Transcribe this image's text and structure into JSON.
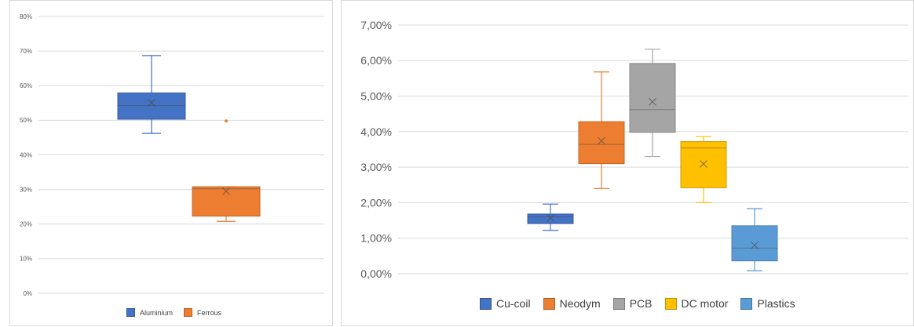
{
  "charts": [
    {
      "id": "left",
      "chart_data": {
        "type": "box",
        "title": "",
        "xlabel": "",
        "ylabel": "",
        "ylim": [
          0,
          0.8
        ],
        "yticks": [
          "0%",
          "10%",
          "20%",
          "30%",
          "40%",
          "50%",
          "60%",
          "70%",
          "80%"
        ],
        "grid": true,
        "legend_position": "bottom",
        "series": [
          {
            "name": "Aluminium",
            "color": "#4472C4",
            "min": 0.462,
            "q1": 0.503,
            "median": 0.543,
            "q3": 0.579,
            "max": 0.687,
            "mean": 0.551,
            "outliers": []
          },
          {
            "name": "Ferrous",
            "color": "#ED7D31",
            "min": 0.208,
            "q1": 0.223,
            "median": 0.302,
            "q3": 0.308,
            "max": 0.308,
            "mean": 0.295,
            "outliers": [
              0.498
            ]
          }
        ]
      }
    },
    {
      "id": "right",
      "chart_data": {
        "type": "box",
        "title": "",
        "xlabel": "",
        "ylabel": "",
        "ylim": [
          0,
          0.07
        ],
        "yticks": [
          "0,00%",
          "1,00%",
          "2,00%",
          "3,00%",
          "4,00%",
          "5,00%",
          "6,00%",
          "7,00%"
        ],
        "grid": true,
        "legend_position": "bottom",
        "series": [
          {
            "name": "Cu-coil",
            "color": "#4472C4",
            "min": 0.0122,
            "q1": 0.0141,
            "median": 0.016,
            "q3": 0.0168,
            "max": 0.0196,
            "mean": 0.0157,
            "outliers": []
          },
          {
            "name": "Neodym",
            "color": "#ED7D31",
            "min": 0.024,
            "q1": 0.031,
            "median": 0.0364,
            "q3": 0.0428,
            "max": 0.0568,
            "mean": 0.0374,
            "outliers": []
          },
          {
            "name": "PCB",
            "color": "#A5A5A5",
            "min": 0.033,
            "q1": 0.0398,
            "median": 0.0462,
            "q3": 0.0592,
            "max": 0.0632,
            "mean": 0.0484,
            "outliers": []
          },
          {
            "name": "DC motor",
            "color": "#FFC000",
            "min": 0.02,
            "q1": 0.0242,
            "median": 0.0354,
            "q3": 0.0372,
            "max": 0.0386,
            "mean": 0.0309,
            "outliers": []
          },
          {
            "name": "Plastics",
            "color": "#5B9BD5",
            "min": 0.0008,
            "q1": 0.0036,
            "median": 0.0072,
            "q3": 0.0135,
            "max": 0.0183,
            "mean": 0.008,
            "outliers": []
          }
        ]
      }
    }
  ]
}
